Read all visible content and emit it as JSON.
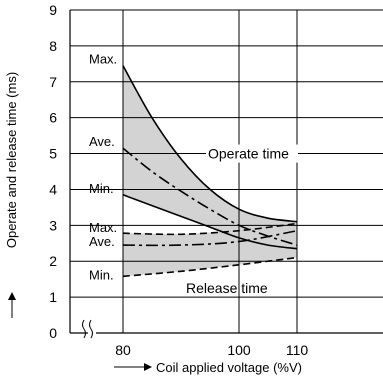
{
  "chart_data": {
    "type": "line",
    "xlabel": "Coil applied voltage (%V)",
    "ylabel": "Operate and release time (ms)",
    "x_ticks": [
      "80",
      "100",
      "110"
    ],
    "y_ticks": [
      "0",
      "1",
      "2",
      "3",
      "4",
      "5",
      "6",
      "7",
      "8",
      "9"
    ],
    "xlim": [
      80,
      110
    ],
    "ylim": [
      0,
      9
    ],
    "grid": true,
    "regions": [
      {
        "name": "Operate time",
        "fill": "#d3d3d3"
      },
      {
        "name": "Release time",
        "fill": "#d3d3d3"
      }
    ],
    "series": [
      {
        "name": "Max.",
        "group": "Operate time",
        "style": "solid",
        "x": [
          80,
          85,
          90,
          95,
          100,
          105,
          110
        ],
        "y": [
          7.45,
          6.0,
          4.85,
          4.0,
          3.45,
          3.2,
          3.1
        ]
      },
      {
        "name": "Ave.",
        "group": "Operate time",
        "style": "dashdot",
        "x": [
          80,
          85,
          90,
          95,
          100,
          105,
          110
        ],
        "y": [
          5.15,
          4.5,
          3.95,
          3.45,
          3.0,
          2.7,
          2.45
        ]
      },
      {
        "name": "Min.",
        "group": "Operate time",
        "style": "solid",
        "x": [
          80,
          85,
          90,
          95,
          100,
          105,
          110
        ],
        "y": [
          3.85,
          3.55,
          3.25,
          2.95,
          2.65,
          2.45,
          2.35
        ]
      },
      {
        "name": "Max.",
        "group": "Release time",
        "style": "dashed",
        "x": [
          80,
          90,
          100,
          110
        ],
        "y": [
          2.78,
          2.75,
          2.85,
          3.05
        ]
      },
      {
        "name": "Ave.",
        "group": "Release time",
        "style": "dashdot",
        "x": [
          80,
          90,
          100,
          110
        ],
        "y": [
          2.45,
          2.45,
          2.55,
          2.85
        ]
      },
      {
        "name": "Min.",
        "group": "Release time",
        "style": "dashed",
        "x": [
          80,
          90,
          100,
          110
        ],
        "y": [
          1.58,
          1.72,
          1.9,
          2.1
        ]
      }
    ],
    "text_labels": {
      "operate_time": "Operate time",
      "release_time": "Release time",
      "max": "Max.",
      "ave": "Ave.",
      "min": "Min."
    }
  }
}
